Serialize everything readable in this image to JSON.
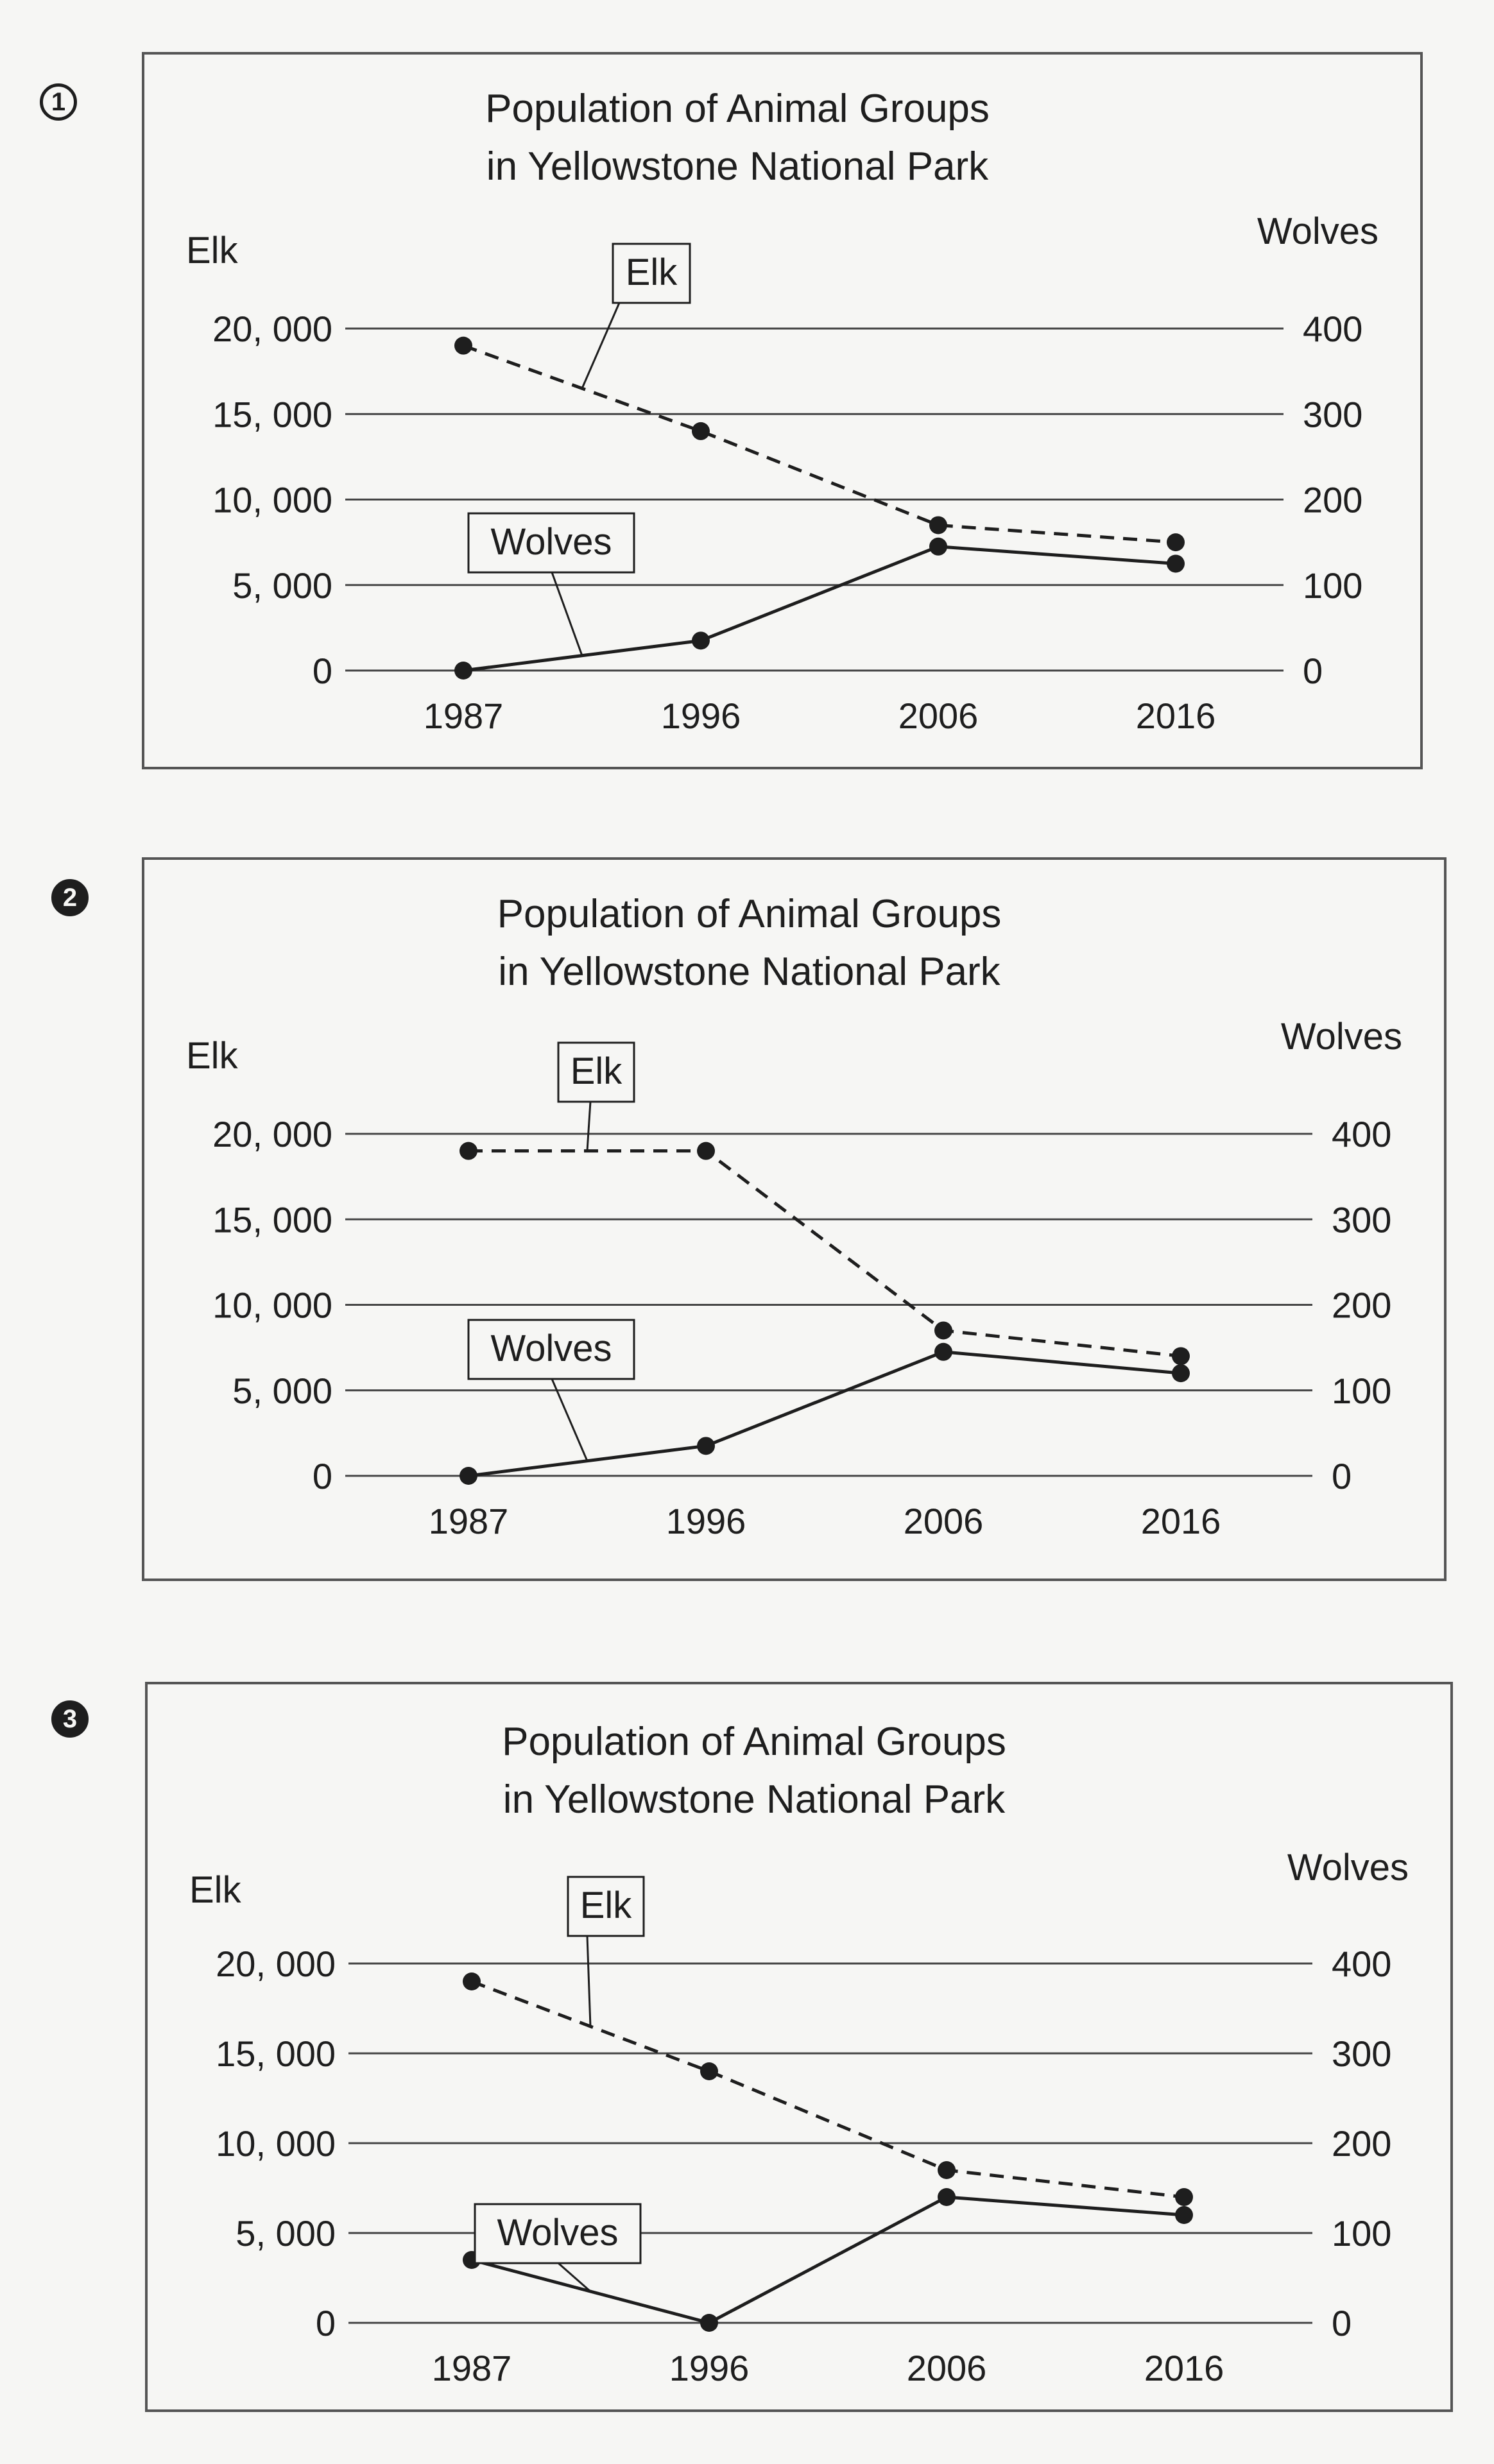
{
  "chart_data": [
    {
      "number": "1",
      "type": "line",
      "title_lines": [
        "Population of Animal Groups",
        "in Yellowstone National Park"
      ],
      "left_axis_label": "Elk",
      "right_axis_label": "Wolves",
      "x": [
        "1987",
        "1996",
        "2006",
        "2016"
      ],
      "left_ticks": [
        "20, 000",
        "15, 000",
        "10, 000",
        "5, 000",
        "0"
      ],
      "right_ticks": [
        "400",
        "300",
        "200",
        "100",
        "0"
      ],
      "left_ylim": [
        0,
        20000
      ],
      "right_ylim": [
        0,
        400
      ],
      "grid": "horizontal",
      "series": [
        {
          "name": "Elk",
          "axis": "left",
          "style": "dashed",
          "values": [
            19000,
            14000,
            8500,
            7500
          ]
        },
        {
          "name": "Wolves",
          "axis": "right",
          "style": "solid",
          "values": [
            0,
            35,
            145,
            125
          ]
        }
      ]
    },
    {
      "number": "2",
      "type": "line",
      "title_lines": [
        "Population of Animal Groups",
        "in Yellowstone National Park"
      ],
      "left_axis_label": "Elk",
      "right_axis_label": "Wolves",
      "x": [
        "1987",
        "1996",
        "2006",
        "2016"
      ],
      "left_ticks": [
        "20, 000",
        "15, 000",
        "10, 000",
        "5, 000",
        "0"
      ],
      "right_ticks": [
        "400",
        "300",
        "200",
        "100",
        "0"
      ],
      "left_ylim": [
        0,
        20000
      ],
      "right_ylim": [
        0,
        400
      ],
      "grid": "horizontal",
      "series": [
        {
          "name": "Elk",
          "axis": "left",
          "style": "dashed",
          "values": [
            19000,
            19000,
            8500,
            7000
          ]
        },
        {
          "name": "Wolves",
          "axis": "right",
          "style": "solid",
          "values": [
            0,
            35,
            145,
            120
          ]
        }
      ]
    },
    {
      "number": "3",
      "type": "line",
      "title_lines": [
        "Population of Animal Groups",
        "in Yellowstone National Park"
      ],
      "left_axis_label": "Elk",
      "right_axis_label": "Wolves",
      "x": [
        "1987",
        "1996",
        "2006",
        "2016"
      ],
      "left_ticks": [
        "20, 000",
        "15, 000",
        "10, 000",
        "5, 000",
        "0"
      ],
      "right_ticks": [
        "400",
        "300",
        "200",
        "100",
        "0"
      ],
      "left_ylim": [
        0,
        20000
      ],
      "right_ylim": [
        0,
        400
      ],
      "grid": "horizontal",
      "series": [
        {
          "name": "Elk",
          "axis": "left",
          "style": "dashed",
          "values": [
            19000,
            14000,
            8500,
            7000
          ]
        },
        {
          "name": "Wolves",
          "axis": "right",
          "style": "solid",
          "values": [
            70,
            0,
            140,
            120
          ]
        }
      ]
    }
  ]
}
